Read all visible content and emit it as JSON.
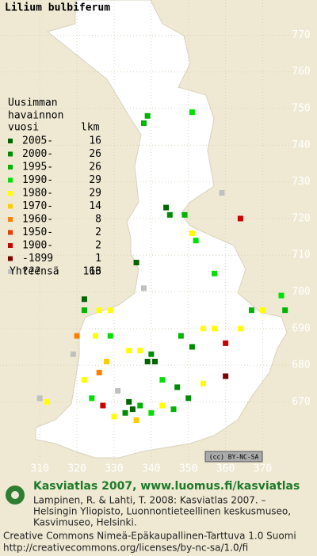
{
  "map": {
    "title": "Lilium bulbiferum",
    "legend_header": [
      "Uusimman",
      "havainnon",
      "vuosi",
      "lkm"
    ],
    "legend": [
      {
        "label": "2005-",
        "count": 16,
        "color": "#006400"
      },
      {
        "label": "2000-",
        "count": 26,
        "color": "#008c00"
      },
      {
        "label": "1995-",
        "count": 26,
        "color": "#00b400"
      },
      {
        "label": "1990-",
        "count": 29,
        "color": "#00e000"
      },
      {
        "label": "1980-",
        "count": 29,
        "color": "#ffff00"
      },
      {
        "label": "1970-",
        "count": 14,
        "color": "#ffcc00"
      },
      {
        "label": "1960-",
        "count": 8,
        "color": "#ff8000"
      },
      {
        "label": "1950-",
        "count": 2,
        "color": "#e04000"
      },
      {
        "label": "1900-",
        "count": 2,
        "color": "#c80000"
      },
      {
        "label": "-1899",
        "count": 1,
        "color": "#800000"
      },
      {
        "label": "???",
        "count": 13,
        "color": "#c0c0c0"
      }
    ],
    "total": {
      "label": "Yhteensä",
      "value": 166
    },
    "xticks": [
      310,
      320,
      330,
      340,
      350,
      360,
      370
    ],
    "yticks": [
      670,
      680,
      690,
      700,
      710,
      720,
      730,
      740,
      750,
      760,
      770
    ],
    "xlim": [
      299.3,
      384.6
    ],
    "ylim": [
      650,
      779.6
    ],
    "points": [
      {
        "x": 339,
        "y": 748,
        "class": 2
      },
      {
        "x": 338,
        "y": 746,
        "class": 2
      },
      {
        "x": 351,
        "y": 749,
        "class": 3
      },
      {
        "x": 359,
        "y": 727,
        "class": 10
      },
      {
        "x": 344,
        "y": 723,
        "class": 0
      },
      {
        "x": 345,
        "y": 721,
        "class": 1
      },
      {
        "x": 349,
        "y": 721,
        "class": 2
      },
      {
        "x": 364,
        "y": 720,
        "class": 8
      },
      {
        "x": 351,
        "y": 716,
        "class": 4
      },
      {
        "x": 352,
        "y": 714,
        "class": 3
      },
      {
        "x": 336,
        "y": 708,
        "class": 0
      },
      {
        "x": 357,
        "y": 705,
        "class": 3
      },
      {
        "x": 338,
        "y": 701,
        "class": 10
      },
      {
        "x": 322,
        "y": 698,
        "class": 0
      },
      {
        "x": 322,
        "y": 695,
        "class": 2
      },
      {
        "x": 326,
        "y": 695,
        "class": 4
      },
      {
        "x": 329,
        "y": 695,
        "class": 4
      },
      {
        "x": 375,
        "y": 699,
        "class": 3
      },
      {
        "x": 367,
        "y": 695,
        "class": 2
      },
      {
        "x": 370,
        "y": 695,
        "class": 4
      },
      {
        "x": 376,
        "y": 695,
        "class": 2
      },
      {
        "x": 354,
        "y": 690,
        "class": 4
      },
      {
        "x": 357,
        "y": 690,
        "class": 4
      },
      {
        "x": 364,
        "y": 690,
        "class": 4
      },
      {
        "x": 334,
        "y": 684,
        "class": 4
      },
      {
        "x": 337,
        "y": 684,
        "class": 4
      },
      {
        "x": 339,
        "y": 681,
        "class": 0
      },
      {
        "x": 341,
        "y": 681,
        "class": 0
      },
      {
        "x": 340,
        "y": 683,
        "class": 1
      },
      {
        "x": 360,
        "y": 686,
        "class": 8
      },
      {
        "x": 360,
        "y": 677,
        "class": 9
      },
      {
        "x": 320,
        "y": 688,
        "class": 6
      },
      {
        "x": 325,
        "y": 688,
        "class": 4
      },
      {
        "x": 329,
        "y": 688,
        "class": 3
      },
      {
        "x": 348,
        "y": 688,
        "class": 2
      },
      {
        "x": 351,
        "y": 685,
        "class": 1
      },
      {
        "x": 343,
        "y": 676,
        "class": 3
      },
      {
        "x": 347,
        "y": 674,
        "class": 1
      },
      {
        "x": 334,
        "y": 670,
        "class": 0
      },
      {
        "x": 335,
        "y": 668,
        "class": 0
      },
      {
        "x": 333,
        "y": 667,
        "class": 1
      },
      {
        "x": 337,
        "y": 669,
        "class": 2
      },
      {
        "x": 340,
        "y": 667,
        "class": 3
      },
      {
        "x": 343,
        "y": 669,
        "class": 4
      },
      {
        "x": 346,
        "y": 668,
        "class": 2
      },
      {
        "x": 330,
        "y": 666,
        "class": 4
      },
      {
        "x": 327,
        "y": 669,
        "class": 8
      },
      {
        "x": 324,
        "y": 671,
        "class": 3
      },
      {
        "x": 322,
        "y": 676,
        "class": 4
      },
      {
        "x": 326,
        "y": 678,
        "class": 6
      },
      {
        "x": 310,
        "y": 671,
        "class": 10
      },
      {
        "x": 312,
        "y": 670,
        "class": 4
      },
      {
        "x": 331,
        "y": 673,
        "class": 10
      },
      {
        "x": 336,
        "y": 665,
        "class": 5
      },
      {
        "x": 350,
        "y": 671,
        "class": 1
      },
      {
        "x": 354,
        "y": 675,
        "class": 4
      },
      {
        "x": 328,
        "y": 681,
        "class": 5
      },
      {
        "x": 319,
        "y": 683,
        "class": 10
      }
    ],
    "badge": "(cc) BY-NC-SA",
    "site_title": "Kasviatlas 2007, www.luomus.fi/kasviatlas",
    "citation": [
      "Lampinen, R. & Lahti, T. 2008: Kasviatlas 2007. –",
      "Helsingin Yliopisto, Luonnontieteellinen keskusmuseo,",
      "Kasvimuseo, Helsinki."
    ],
    "license": [
      "Creative Commons Nimeä-Epäkaupallinen-Tarttuva 1.0 Suomi",
      "http://creativecommons.org/licenses/by-nc-sa/1.0/fi"
    ]
  }
}
